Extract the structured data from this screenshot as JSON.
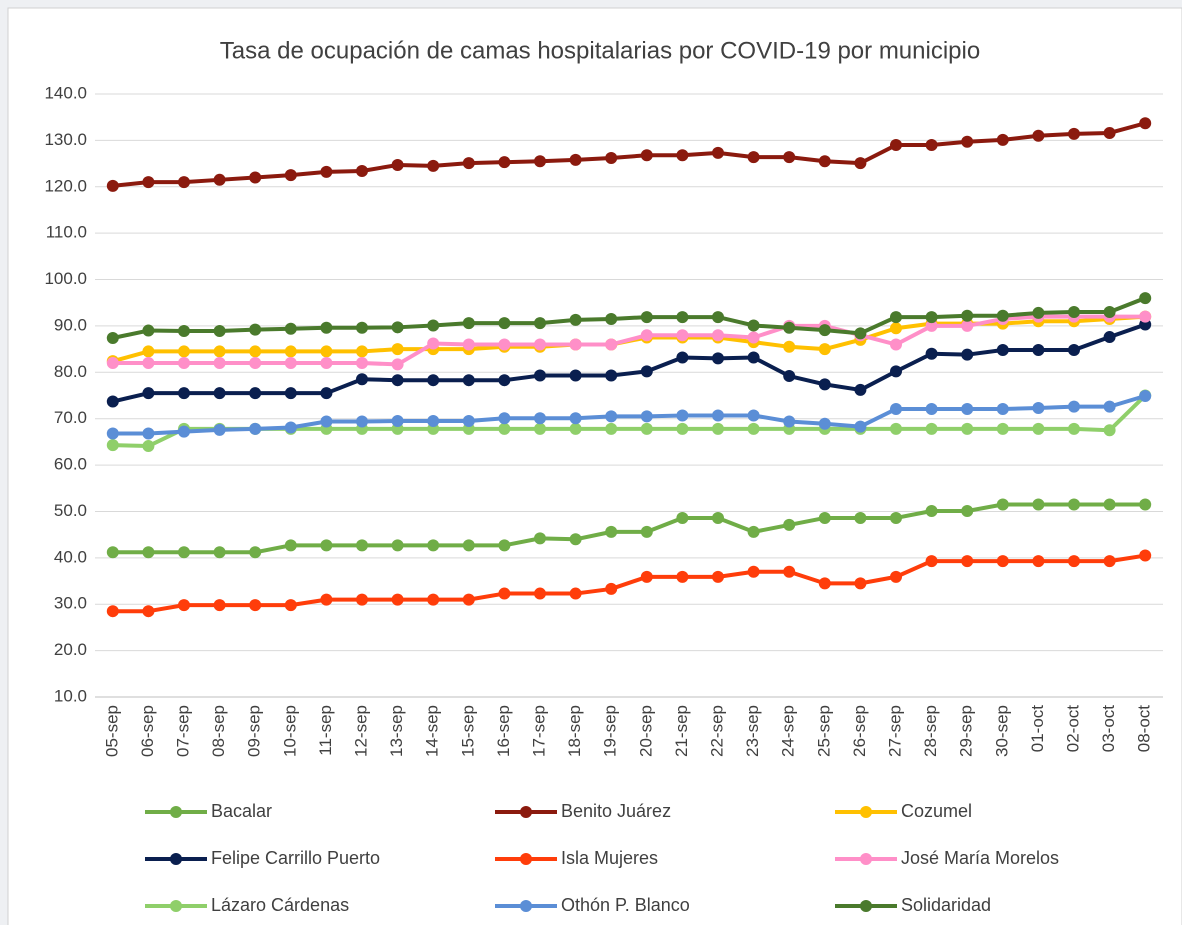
{
  "chart_data": {
    "type": "line",
    "title": "Tasa de ocupación de camas hospitalarias por COVID-19 por municipio",
    "categories": [
      "05-sep",
      "06-sep",
      "07-sep",
      "08-sep",
      "09-sep",
      "10-sep",
      "11-sep",
      "12-sep",
      "13-sep",
      "14-sep",
      "15-sep",
      "16-sep",
      "17-sep",
      "18-sep",
      "19-sep",
      "20-sep",
      "21-sep",
      "22-sep",
      "23-sep",
      "24-sep",
      "25-sep",
      "26-sep",
      "27-sep",
      "28-sep",
      "29-sep",
      "30-sep",
      "01-oct",
      "02-oct",
      "03-oct",
      "08-oct"
    ],
    "ylim": [
      10,
      140
    ],
    "yticks": [
      {
        "value": 10,
        "label": "10.0"
      },
      {
        "value": 20,
        "label": "20.0"
      },
      {
        "value": 30,
        "label": "30.0"
      },
      {
        "value": 40,
        "label": "40.0"
      },
      {
        "value": 50,
        "label": "50.0"
      },
      {
        "value": 60,
        "label": "60.0"
      },
      {
        "value": 70,
        "label": "70.0"
      },
      {
        "value": 80,
        "label": "80.0"
      },
      {
        "value": 90,
        "label": "90.0"
      },
      {
        "value": 100,
        "label": "100.0"
      },
      {
        "value": 110,
        "label": "110.0"
      },
      {
        "value": 120,
        "label": "120.0"
      },
      {
        "value": 130,
        "label": "130.0"
      },
      {
        "value": 140,
        "label": "140.0"
      }
    ],
    "grid": true,
    "legend": "bottom",
    "series": [
      {
        "name": "Bacalar",
        "color": "#70ad47",
        "values": [
          41.2,
          41.2,
          41.2,
          41.2,
          41.2,
          42.7,
          42.7,
          42.7,
          42.7,
          42.7,
          42.7,
          42.7,
          44.2,
          44.0,
          45.6,
          45.6,
          48.6,
          48.6,
          45.6,
          47.1,
          48.6,
          48.6,
          48.6,
          50.1,
          50.1,
          51.5,
          51.5,
          51.5,
          51.5,
          51.5
        ]
      },
      {
        "name": "Benito Juárez",
        "color": "#8b1a0e",
        "values": [
          120.2,
          121.0,
          121.0,
          121.5,
          122.0,
          122.5,
          123.2,
          123.4,
          124.7,
          124.5,
          125.1,
          125.3,
          125.5,
          125.8,
          126.2,
          126.8,
          126.8,
          127.3,
          126.4,
          126.4,
          125.5,
          125.1,
          129.0,
          129.0,
          129.7,
          130.1,
          131.0,
          131.4,
          131.6,
          133.7
        ]
      },
      {
        "name": "Cozumel",
        "color": "#ffc000",
        "values": [
          82.4,
          84.5,
          84.5,
          84.5,
          84.5,
          84.5,
          84.5,
          84.5,
          85.0,
          85.0,
          85.0,
          85.5,
          85.5,
          86.0,
          86.0,
          87.5,
          87.5,
          87.5,
          86.5,
          85.5,
          85.0,
          87.0,
          89.5,
          90.5,
          90.5,
          90.5,
          91.0,
          91.0,
          91.5,
          92.0
        ]
      },
      {
        "name": "Felipe Carrillo Puerto",
        "color": "#0a1f4f",
        "values": [
          73.7,
          75.5,
          75.5,
          75.5,
          75.5,
          75.5,
          75.5,
          78.5,
          78.3,
          78.3,
          78.3,
          78.3,
          79.3,
          79.3,
          79.3,
          80.2,
          83.2,
          83.0,
          83.2,
          79.2,
          77.4,
          76.2,
          80.2,
          84.0,
          83.8,
          84.8,
          84.8,
          84.8,
          87.6,
          90.3
        ]
      },
      {
        "name": "Isla Mujeres",
        "color": "#ff3d0a",
        "values": [
          28.5,
          28.5,
          29.8,
          29.8,
          29.8,
          29.8,
          31.0,
          31.0,
          31.0,
          31.0,
          31.0,
          32.3,
          32.3,
          32.3,
          33.3,
          35.9,
          35.9,
          35.9,
          37.0,
          37.0,
          34.5,
          34.5,
          35.9,
          39.3,
          39.3,
          39.3,
          39.3,
          39.3,
          39.3,
          40.5
        ]
      },
      {
        "name": "José María Morelos",
        "color": "#ff8fc8",
        "values": [
          82.0,
          82.0,
          82.0,
          82.0,
          82.0,
          82.0,
          82.0,
          82.0,
          81.7,
          86.2,
          86.0,
          86.0,
          86.0,
          86.0,
          86.0,
          88.0,
          88.0,
          88.0,
          87.5,
          90.0,
          90.0,
          88.0,
          86.0,
          90.0,
          90.0,
          91.5,
          92.0,
          92.0,
          92.0,
          92.0
        ]
      },
      {
        "name": "Lázaro Cárdenas",
        "color": "#8fcf6a",
        "values": [
          64.3,
          64.1,
          67.8,
          67.8,
          67.8,
          67.8,
          67.8,
          67.8,
          67.8,
          67.8,
          67.8,
          67.8,
          67.8,
          67.8,
          67.8,
          67.8,
          67.8,
          67.8,
          67.8,
          67.8,
          67.8,
          67.8,
          67.8,
          67.8,
          67.8,
          67.8,
          67.8,
          67.8,
          67.5,
          75.0
        ]
      },
      {
        "name": "Othón P. Blanco",
        "color": "#5b8ed6",
        "values": [
          66.8,
          66.8,
          67.2,
          67.6,
          67.8,
          68.1,
          69.4,
          69.4,
          69.5,
          69.5,
          69.5,
          70.1,
          70.1,
          70.1,
          70.5,
          70.5,
          70.7,
          70.7,
          70.7,
          69.4,
          68.9,
          68.3,
          72.1,
          72.1,
          72.1,
          72.1,
          72.3,
          72.6,
          72.6,
          74.9
        ]
      },
      {
        "name": "Solidaridad",
        "color": "#4a7a2c",
        "values": [
          87.4,
          89.0,
          88.9,
          88.9,
          89.2,
          89.4,
          89.6,
          89.6,
          89.7,
          90.1,
          90.6,
          90.6,
          90.6,
          91.3,
          91.5,
          91.9,
          91.9,
          91.9,
          90.1,
          89.6,
          89.1,
          88.4,
          91.9,
          91.9,
          92.2,
          92.2,
          92.8,
          93.0,
          93.0,
          96.0
        ]
      }
    ]
  }
}
